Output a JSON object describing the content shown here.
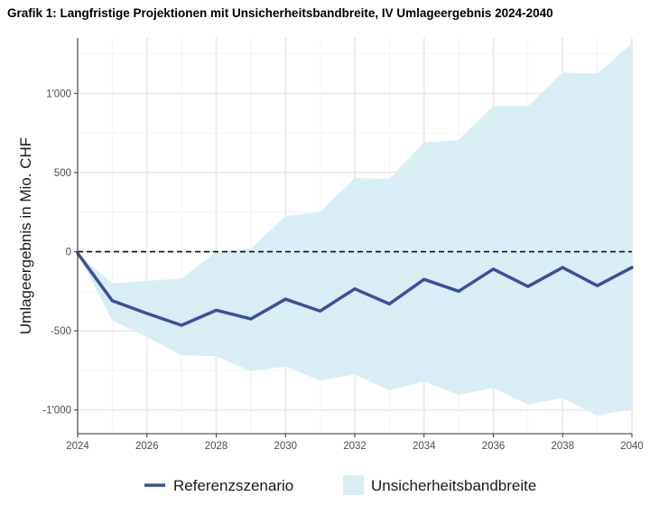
{
  "chart_data": {
    "type": "area",
    "title": "Grafik 1: Langfristige Projektionen mit Unsicherheitsbandbreite, IV Umlageergebnis 2024-2040",
    "xlabel": "",
    "ylabel": "Umlageergebnis in Mio. CHF",
    "xlim": [
      2024,
      2040
    ],
    "ylim": [
      -1150,
      1350
    ],
    "x_ticks": [
      2024,
      2026,
      2028,
      2030,
      2032,
      2034,
      2036,
      2038,
      2040
    ],
    "x_tick_labels": [
      "2024",
      "2026",
      "2028",
      "2030",
      "2032",
      "2034",
      "2036",
      "2038",
      "2040"
    ],
    "y_ticks": [
      -1000,
      -500,
      0,
      500,
      1000
    ],
    "y_tick_labels": [
      "-1'000",
      "-500",
      "0",
      "500",
      "1'000"
    ],
    "grid": true,
    "reference_line": {
      "y": 0,
      "style": "dashed"
    },
    "x": [
      2024,
      2025,
      2026,
      2027,
      2028,
      2029,
      2030,
      2031,
      2032,
      2033,
      2034,
      2035,
      2036,
      2037,
      2038,
      2039,
      2040
    ],
    "series": [
      {
        "name": "Referenzszenario",
        "kind": "line",
        "color": "#3a4f9c",
        "values": [
          -10,
          -310,
          -390,
          -465,
          -370,
          -425,
          -300,
          -375,
          -235,
          -330,
          -175,
          -250,
          -110,
          -220,
          -100,
          -215,
          -100
        ]
      },
      {
        "name": "Unsicherheitsbandbreite",
        "kind": "band",
        "color": "#d9edf5",
        "lower": [
          -10,
          -435,
          -540,
          -655,
          -660,
          -755,
          -725,
          -815,
          -775,
          -875,
          -820,
          -905,
          -860,
          -965,
          -925,
          -1035,
          -995
        ],
        "upper": [
          -10,
          -200,
          -185,
          -170,
          0,
          20,
          225,
          250,
          465,
          460,
          690,
          705,
          920,
          920,
          1130,
          1125,
          1315
        ]
      }
    ],
    "legend": {
      "placement": "bottom",
      "items": [
        "Referenzszenario",
        "Unsicherheitsbandbreite"
      ]
    }
  }
}
